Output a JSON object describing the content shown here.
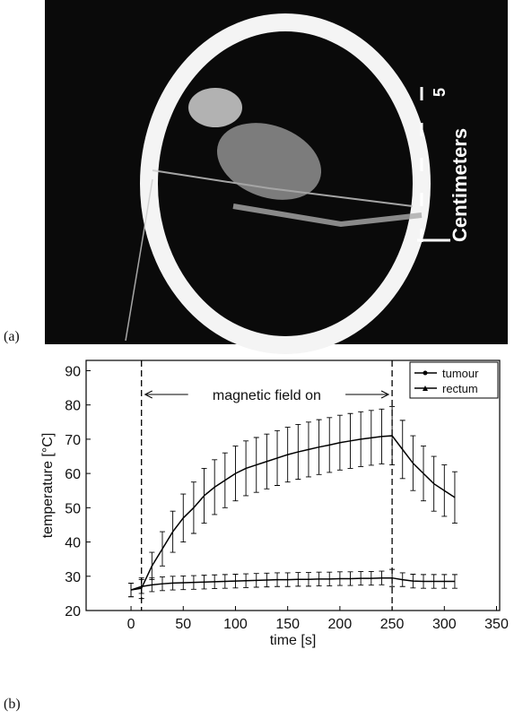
{
  "image": {
    "label": "(a)",
    "scale_label": "Centimeters",
    "scale_number": "5"
  },
  "chart_data": {
    "type": "line",
    "panel_label": "(b)",
    "x_label": "time [s]",
    "y_label": "temperature [°C]",
    "annotation": "magnetic field on",
    "vlines": [
      10,
      250
    ],
    "x": [
      0,
      10,
      20,
      30,
      40,
      50,
      60,
      70,
      80,
      90,
      100,
      110,
      120,
      130,
      140,
      150,
      160,
      170,
      180,
      190,
      200,
      210,
      220,
      230,
      240,
      250,
      260,
      270,
      280,
      290,
      300,
      310
    ],
    "series": [
      {
        "name": "tumour",
        "color": "#000000",
        "marker": "circle",
        "values": [
          26,
          26.5,
          33,
          38,
          43,
          47,
          50,
          53.5,
          56,
          58,
          60,
          61.5,
          62.5,
          63.5,
          64.5,
          65.5,
          66.3,
          67,
          67.7,
          68.3,
          69,
          69.5,
          70,
          70.4,
          70.8,
          71,
          67,
          63,
          60,
          57,
          55,
          53
        ],
        "errors": [
          2,
          3,
          4,
          5,
          6,
          7,
          7.5,
          8,
          8,
          8,
          8,
          8,
          8,
          8,
          8,
          8,
          8,
          8,
          8,
          8,
          8,
          8,
          8,
          8,
          8,
          8.5,
          8.5,
          8,
          8,
          8,
          7.5,
          7.5
        ]
      },
      {
        "name": "rectum",
        "color": "#000000",
        "marker": "triangle",
        "values": [
          26,
          27,
          27.5,
          27.8,
          28,
          28.1,
          28.2,
          28.3,
          28.4,
          28.5,
          28.6,
          28.7,
          28.8,
          28.9,
          29,
          29,
          29.1,
          29.1,
          29.2,
          29.2,
          29.3,
          29.3,
          29.4,
          29.4,
          29.5,
          29.5,
          29,
          28.6,
          28.5,
          28.5,
          28.5,
          28.5
        ],
        "errors": [
          2,
          2,
          2,
          2,
          2,
          2,
          2,
          2,
          2,
          2,
          2,
          2,
          2,
          2,
          2,
          2,
          2,
          2,
          2,
          2,
          2,
          2,
          2,
          2,
          2,
          2.5,
          2,
          2,
          2,
          2,
          2,
          2
        ]
      }
    ],
    "xlim": [
      -43,
      353
    ],
    "ylim": [
      20,
      93
    ],
    "xticks": [
      0,
      50,
      100,
      150,
      200,
      250,
      300,
      350
    ],
    "yticks": [
      20,
      30,
      40,
      50,
      60,
      70,
      80,
      90
    ],
    "legend": "upper right"
  }
}
